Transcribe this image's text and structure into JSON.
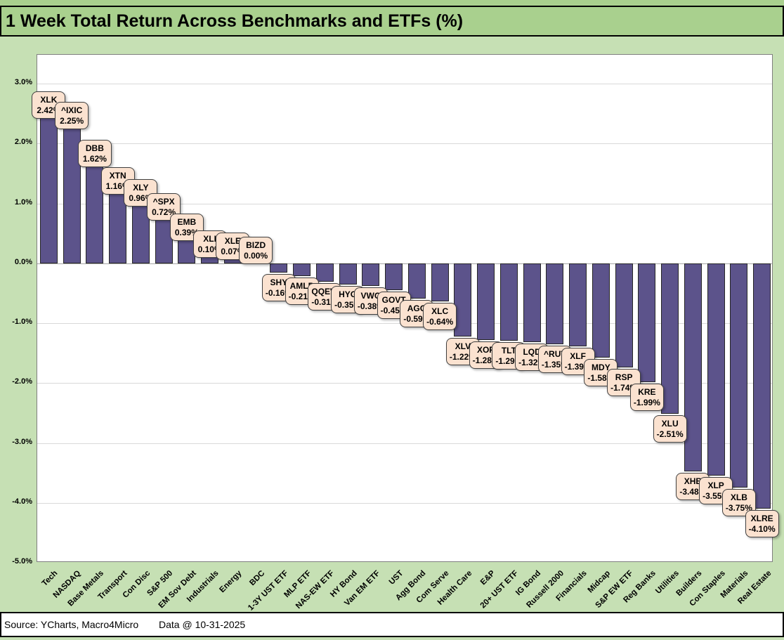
{
  "title": "1 Week Total Return Across Benchmarks and ETFs (%)",
  "footer": {
    "source": "Source: YCharts, Macro4Micro",
    "data_date": "Data @ 10-31-2025"
  },
  "colors": {
    "page_bg": "#c6e0b4",
    "title_bg": "#a9d08e",
    "bar_fill": "#5c538b",
    "bar_border": "#262626",
    "label_bg": "#fbe2d0",
    "label_border": "#404040",
    "plot_bg": "#ffffff",
    "grid": "#d9d9d9",
    "axis_line": "#a6a6a6"
  },
  "chart_data": {
    "type": "bar",
    "title": "1 Week Total Return Across Benchmarks and ETFs (%)",
    "xlabel": "",
    "ylabel": "",
    "ylim": [
      -5.0,
      3.0
    ],
    "grid": true,
    "legend_position": "none",
    "ytick_labels": [
      "3.0%",
      "2.0%",
      "1.0%",
      "0.0%",
      "-1.0%",
      "-2.0%",
      "-3.0%",
      "-4.0%",
      "-5.0%"
    ],
    "ytick_values": [
      3,
      2,
      1,
      0,
      -1,
      -2,
      -3,
      -4,
      -5
    ],
    "categories": [
      "Tech",
      "NASDAQ",
      "Base Metals",
      "Transport",
      "Con Disc",
      "S&P 500",
      "EM Sov Debt",
      "Industrials",
      "Energy",
      "BDC",
      "1-3Y UST ETF",
      "MLP ETF",
      "NAS-EW ETF",
      "HY Bond",
      "Van EM ETF",
      "UST",
      "Agg Bond",
      "Com Serve",
      "Health Care",
      "E&P",
      "20+ UST ETF",
      "IG Bond",
      "Russell 2000",
      "Financials",
      "Midcap",
      "S&P EW ETF",
      "Reg Banks",
      "Utilities",
      "Builders",
      "Con Staples",
      "Materials",
      "Real Estate"
    ],
    "series": [
      {
        "name": "1 Week Total Return (%)",
        "points": [
          {
            "category": "Tech",
            "ticker": "XLK",
            "value": 2.42
          },
          {
            "category": "NASDAQ",
            "ticker": "^IXIC",
            "value": 2.25
          },
          {
            "category": "Base Metals",
            "ticker": "DBB",
            "value": 1.62
          },
          {
            "category": "Transport",
            "ticker": "XTN",
            "value": 1.16
          },
          {
            "category": "Con Disc",
            "ticker": "XLY",
            "value": 0.96
          },
          {
            "category": "S&P 500",
            "ticker": "^SPX",
            "value": 0.72
          },
          {
            "category": "EM Sov Debt",
            "ticker": "EMB",
            "value": 0.39
          },
          {
            "category": "Industrials",
            "ticker": "XLI",
            "value": 0.1
          },
          {
            "category": "Energy",
            "ticker": "XLE",
            "value": 0.07
          },
          {
            "category": "BDC",
            "ticker": "BIZD",
            "value": 0.0
          },
          {
            "category": "1-3Y UST ETF",
            "ticker": "SHY",
            "value": -0.16
          },
          {
            "category": "MLP ETF",
            "ticker": "AMLP",
            "value": -0.21
          },
          {
            "category": "NAS-EW ETF",
            "ticker": "QQEW",
            "value": -0.31
          },
          {
            "category": "HY Bond",
            "ticker": "HYG",
            "value": -0.35
          },
          {
            "category": "Van EM ETF",
            "ticker": "VWO",
            "value": -0.38
          },
          {
            "category": "UST",
            "ticker": "GOVT",
            "value": -0.45
          },
          {
            "category": "Agg Bond",
            "ticker": "AGG",
            "value": -0.59
          },
          {
            "category": "Com Serve",
            "ticker": "XLC",
            "value": -0.64
          },
          {
            "category": "Health Care",
            "ticker": "XLV",
            "value": -1.22
          },
          {
            "category": "E&P",
            "ticker": "XOP",
            "value": -1.28
          },
          {
            "category": "20+ UST ETF",
            "ticker": "TLT",
            "value": -1.29
          },
          {
            "category": "IG Bond",
            "ticker": "LQD",
            "value": -1.32
          },
          {
            "category": "Russell 2000",
            "ticker": "^RUT",
            "value": -1.35
          },
          {
            "category": "Financials",
            "ticker": "XLF",
            "value": -1.39
          },
          {
            "category": "Midcap",
            "ticker": "MDY",
            "value": -1.58
          },
          {
            "category": "S&P EW ETF",
            "ticker": "RSP",
            "value": -1.74
          },
          {
            "category": "Reg Banks",
            "ticker": "KRE",
            "value": -1.99
          },
          {
            "category": "Utilities",
            "ticker": "XLU",
            "value": -2.51
          },
          {
            "category": "Builders",
            "ticker": "XHB",
            "value": -3.48
          },
          {
            "category": "Con Staples",
            "ticker": "XLP",
            "value": -3.55
          },
          {
            "category": "Materials",
            "ticker": "XLB",
            "value": -3.75
          },
          {
            "category": "Real Estate",
            "ticker": "XLRE",
            "value": -4.1
          }
        ]
      }
    ]
  }
}
